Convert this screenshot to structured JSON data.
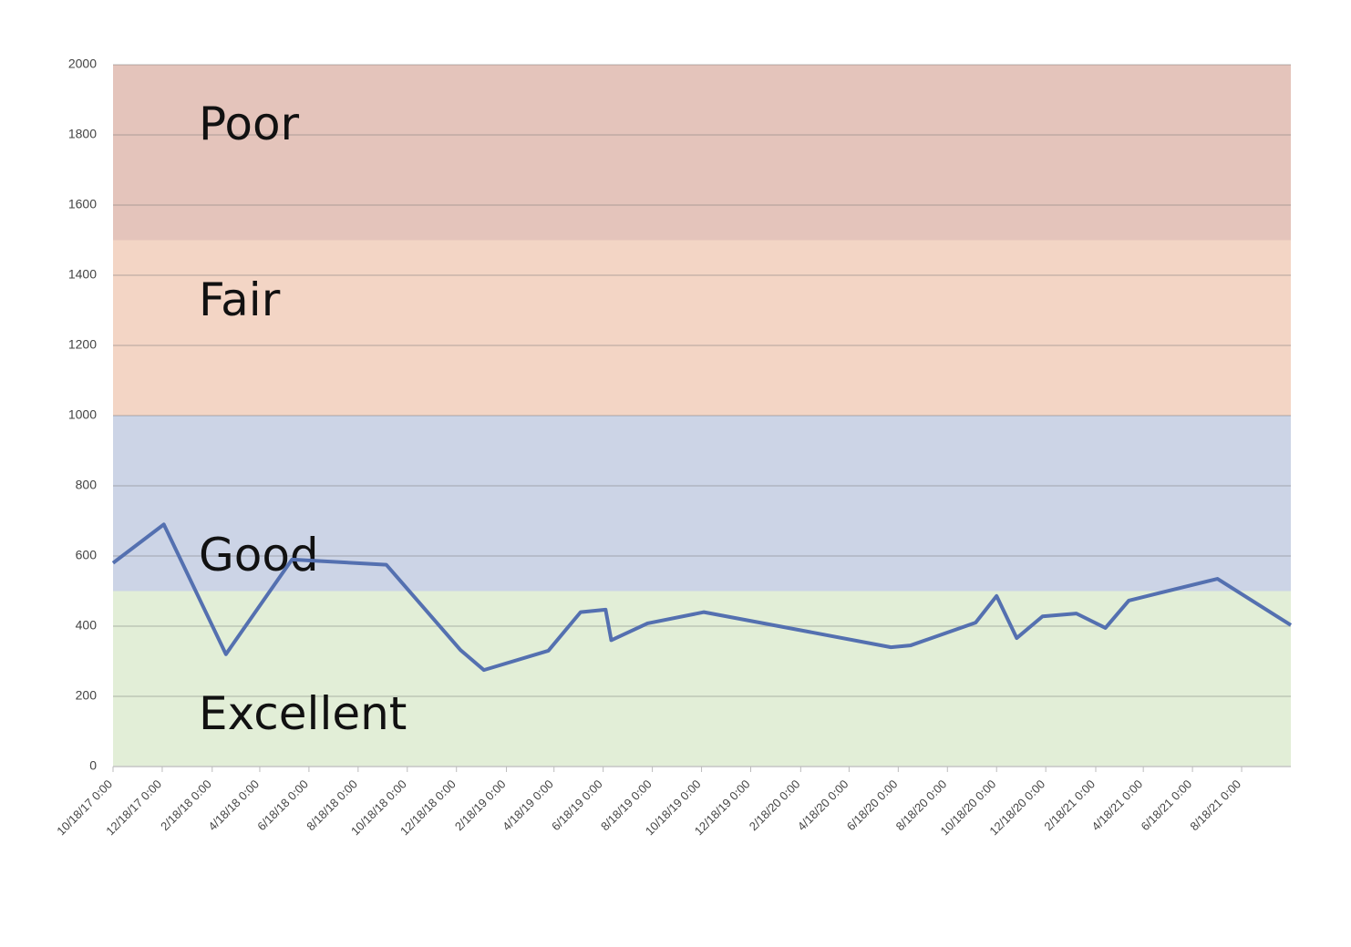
{
  "chart_data": {
    "type": "line",
    "x": [
      "10/18/17 0:00",
      "12/20/17 0:00",
      "3/7/18 0:00",
      "5/28/18 0:00",
      "9/22/18 0:00",
      "12/23/18 0:00",
      "1/21/19 0:00",
      "4/11/19 0:00",
      "5/21/19 0:00",
      "6/21/19 0:00",
      "6/28/19 0:00",
      "8/12/19 0:00",
      "10/21/19 0:00",
      "6/9/20 0:00",
      "7/3/20 0:00",
      "9/22/20 0:00",
      "10/18/20 0:00",
      "11/12/20 0:00",
      "12/14/20 0:00",
      "1/25/21 0:00",
      "3/2/21 0:00",
      "3/31/21 0:00",
      "7/19/21 0:00",
      "10/18/21 0:00"
    ],
    "series": [
      {
        "color": "#5470b0",
        "values": [
          580,
          690,
          320,
          590,
          575,
          332,
          275,
          330,
          440,
          447,
          360,
          408,
          440,
          340,
          345,
          410,
          486,
          366,
          428,
          436,
          395,
          473,
          535,
          403
        ]
      }
    ],
    "bands": [
      {
        "label": "Excellent",
        "from": 0,
        "to": 500,
        "color": "#e2eed7"
      },
      {
        "label": "Good",
        "from": 500,
        "to": 1000,
        "color": "#ccd4e6"
      },
      {
        "label": "Fair",
        "from": 1000,
        "to": 1500,
        "color": "#f3d5c5"
      },
      {
        "label": "Poor",
        "from": 1500,
        "to": 2000,
        "color": "#e4c4bb"
      }
    ],
    "xlim": [
      "10/18/17 0:00",
      "10/18/21 0:00"
    ],
    "xticks": [
      "10/18/17 0:00",
      "12/18/17 0:00",
      "2/18/18 0:00",
      "4/18/18 0:00",
      "6/18/18 0:00",
      "8/18/18 0:00",
      "10/18/18 0:00",
      "12/18/18 0:00",
      "2/18/19 0:00",
      "4/18/19 0:00",
      "6/18/19 0:00",
      "8/18/19 0:00",
      "10/18/19 0:00",
      "12/18/19 0:00",
      "2/18/20 0:00",
      "4/18/20 0:00",
      "6/18/20 0:00",
      "8/18/20 0:00",
      "10/18/20 0:00",
      "12/18/20 0:00",
      "2/18/21 0:00",
      "4/18/21 0:00",
      "6/18/21 0:00",
      "8/18/21 0:00"
    ],
    "ylim": [
      0,
      2000
    ],
    "yticks": [
      0,
      200,
      400,
      600,
      800,
      1000,
      1200,
      1400,
      1600,
      1800,
      2000
    ],
    "grid": true
  }
}
